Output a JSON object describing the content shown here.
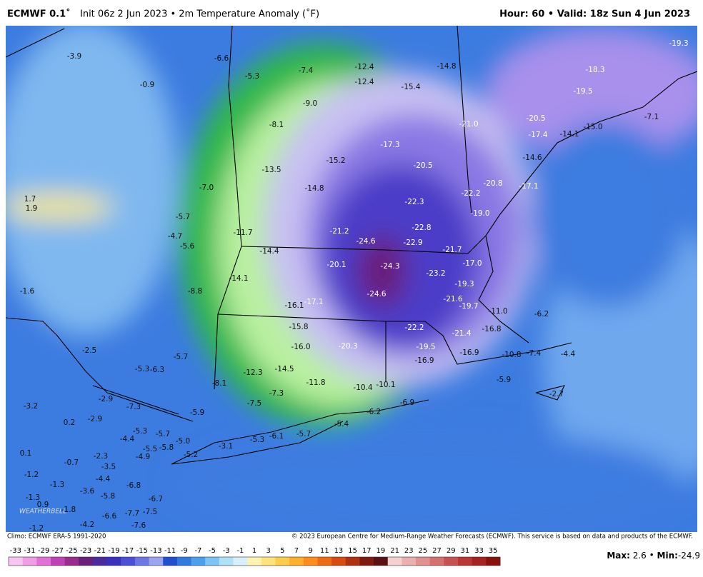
{
  "header": {
    "title": "ECMWF 0.1˚",
    "subtitle": "Init 06z 2 Jun 2023 • 2m Temperature Anomaly (˚F)",
    "valid": "Hour: 60 • Valid: 18z Sun 4 Jun 2023"
  },
  "map": {
    "logo": "WEATHERBELL",
    "labels": [
      "-3.9",
      "-0.9",
      "-6.6",
      "-5.3",
      "-7.4",
      "-12.4",
      "-12.4",
      "-14.8",
      "-15.4",
      "-9.0",
      "-19.3",
      "-18.3",
      "-19.5",
      "-21.0",
      "-20.5",
      "-17.4",
      "-14.1",
      "-15.0",
      "-7.1",
      "-8.1",
      "-17.3",
      "-15.2",
      "-20.5",
      "-13.5",
      "-14.6",
      "-7.0",
      "-14.8",
      "-22.2",
      "-20.8",
      "-17.1",
      "-22.3",
      "1.7",
      "1.9",
      "-5.7",
      "-11.7",
      "-21.2",
      "-22.8",
      "-19.0",
      "-4.7",
      "-5.6",
      "-24.6",
      "-22.9",
      "-21.7",
      "-14.4",
      "-20.1",
      "-24.3",
      "-17.0",
      "-23.2",
      "-14.1",
      "-1.6",
      "-8.8",
      "-24.6",
      "-19.3",
      "-21.6",
      "-17.1",
      "-16.1",
      "-19.7",
      "-11.0",
      "-6.2",
      "-15.8",
      "-22.2",
      "-21.4",
      "-16.8",
      "-19.5",
      "-16.0",
      "-20.3",
      "-2.5",
      "-5.7",
      "-16.9",
      "-10.8",
      "-7.4",
      "-4.4",
      "-16.9",
      "-5.3",
      "-6.3",
      "-14.5",
      "-12.3",
      "-8.1",
      "-11.8",
      "-10.4",
      "-10.1",
      "-5.9",
      "-2.7",
      "-7.3",
      "-2.9",
      "-3.2",
      "-7.3",
      "-6.9",
      "-7.5",
      "-5.9",
      "-6.2",
      "-2.9",
      "0.2",
      "-5.3",
      "-5.7",
      "-4.4",
      "-5.0",
      "-5.4",
      "-6.1",
      "-5.7",
      "-5.3",
      "-5.5",
      "-5.8",
      "-3.1",
      "-2.3",
      "0.1",
      "-5.2",
      "-4.9",
      "-0.7",
      "-3.5",
      "-1.2",
      "-4.4",
      "-1.3",
      "-6.8",
      "-3.6",
      "-5.8",
      "-1.3",
      "-6.7",
      "0.9",
      "-1.8",
      "-7.7",
      "-7.5",
      "-6.6",
      "-4.2",
      "-7.6",
      "-1.2"
    ]
  },
  "footer": {
    "climo": "Climo: ECMWF ERA-5 1991-2020",
    "copyright": "© 2023 European Centre for Medium-Range Weather Forecasts (ECMWF). This service is based on data and products of the ECMWF."
  },
  "colorbar": {
    "ticks": [
      -33,
      -31,
      -29,
      -27,
      -25,
      -23,
      -21,
      -19,
      -17,
      -15,
      -13,
      -11,
      -9,
      -7,
      -5,
      -3,
      -1,
      1,
      3,
      5,
      7,
      9,
      11,
      13,
      15,
      17,
      19,
      21,
      23,
      25,
      27,
      29,
      31,
      33,
      35
    ],
    "colors": [
      "#f7c6f0",
      "#f09de6",
      "#e070d6",
      "#c040b8",
      "#9a2a8c",
      "#6a1f7a",
      "#4b2aa0",
      "#3b2fc0",
      "#4a4ed8",
      "#6b75e6",
      "#9aa3f0",
      "#1f4fd0",
      "#2f7ae0",
      "#4aa0ee",
      "#7cc4f4",
      "#aee0f8",
      "#d8f0fa",
      "#fff3b0",
      "#ffe27a",
      "#ffcc4a",
      "#ffb02a",
      "#ff8c1a",
      "#f06a10",
      "#d84a10",
      "#b03010",
      "#801a10",
      "#5a1010",
      "#f4d0d0",
      "#eab0b0",
      "#e09090",
      "#d47070",
      "#c85050",
      "#bc3434",
      "#a82020",
      "#8a1010"
    ]
  },
  "stats": {
    "max_label": "Max:",
    "max": 2.6,
    "min_label": "Min:",
    "min": -24.9
  }
}
